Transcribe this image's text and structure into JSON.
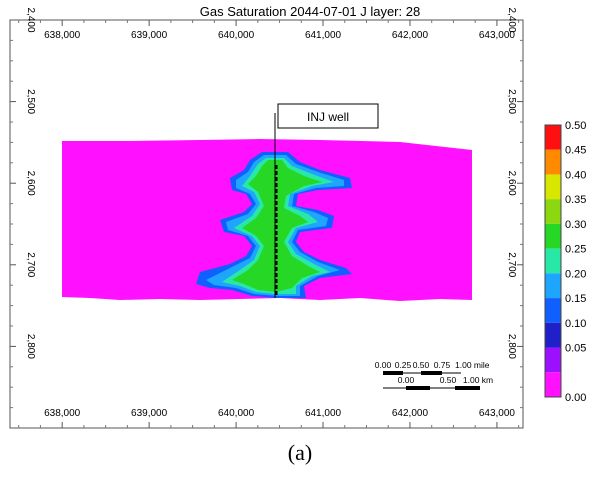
{
  "title": "Gas Saturation 2044-07-01     J layer: 28",
  "caption": "(a)",
  "well_label": "INJ well",
  "scalebar": {
    "miles_labels": [
      "0.00",
      "0.25",
      "0.50",
      "0.75",
      "1.00 mile"
    ],
    "km_labels": [
      "0.00",
      "0.50",
      "1.00 km"
    ]
  },
  "chart_data": {
    "type": "heatmap",
    "title": "Gas Saturation 2044-07-01     J layer: 28",
    "x_ticks": [
      638000,
      639000,
      640000,
      641000,
      642000,
      643000
    ],
    "x_tick_labels": [
      "638,000",
      "639,000",
      "640,000",
      "641,000",
      "642,000",
      "643,000"
    ],
    "y_ticks": [
      2400,
      2500,
      2600,
      2700,
      2800
    ],
    "y_tick_labels": [
      "2,400",
      "2,500",
      "2,600",
      "2,700",
      "2,800"
    ],
    "x_range": [
      637400,
      643300
    ],
    "y_range": [
      2400,
      2900
    ],
    "colorbar": {
      "values": [
        "0.50",
        "0.45",
        "0.40",
        "0.35",
        "0.30",
        "0.25",
        "0.20",
        "0.15",
        "0.10",
        "0.05",
        "0.00"
      ],
      "colors": [
        "#ff1010",
        "#ff8a00",
        "#d8e600",
        "#8bd810",
        "#26d726",
        "#28e8a8",
        "#1ea6ff",
        "#1060ff",
        "#2020c8",
        "#9a10ff",
        "#ff10ff"
      ]
    },
    "background_saturation": 0.0,
    "plume_colors": {
      "core": "#26d726",
      "mid": "#28e8a8",
      "edge": "#1ea6ff",
      "rim": "#1060ff"
    }
  }
}
